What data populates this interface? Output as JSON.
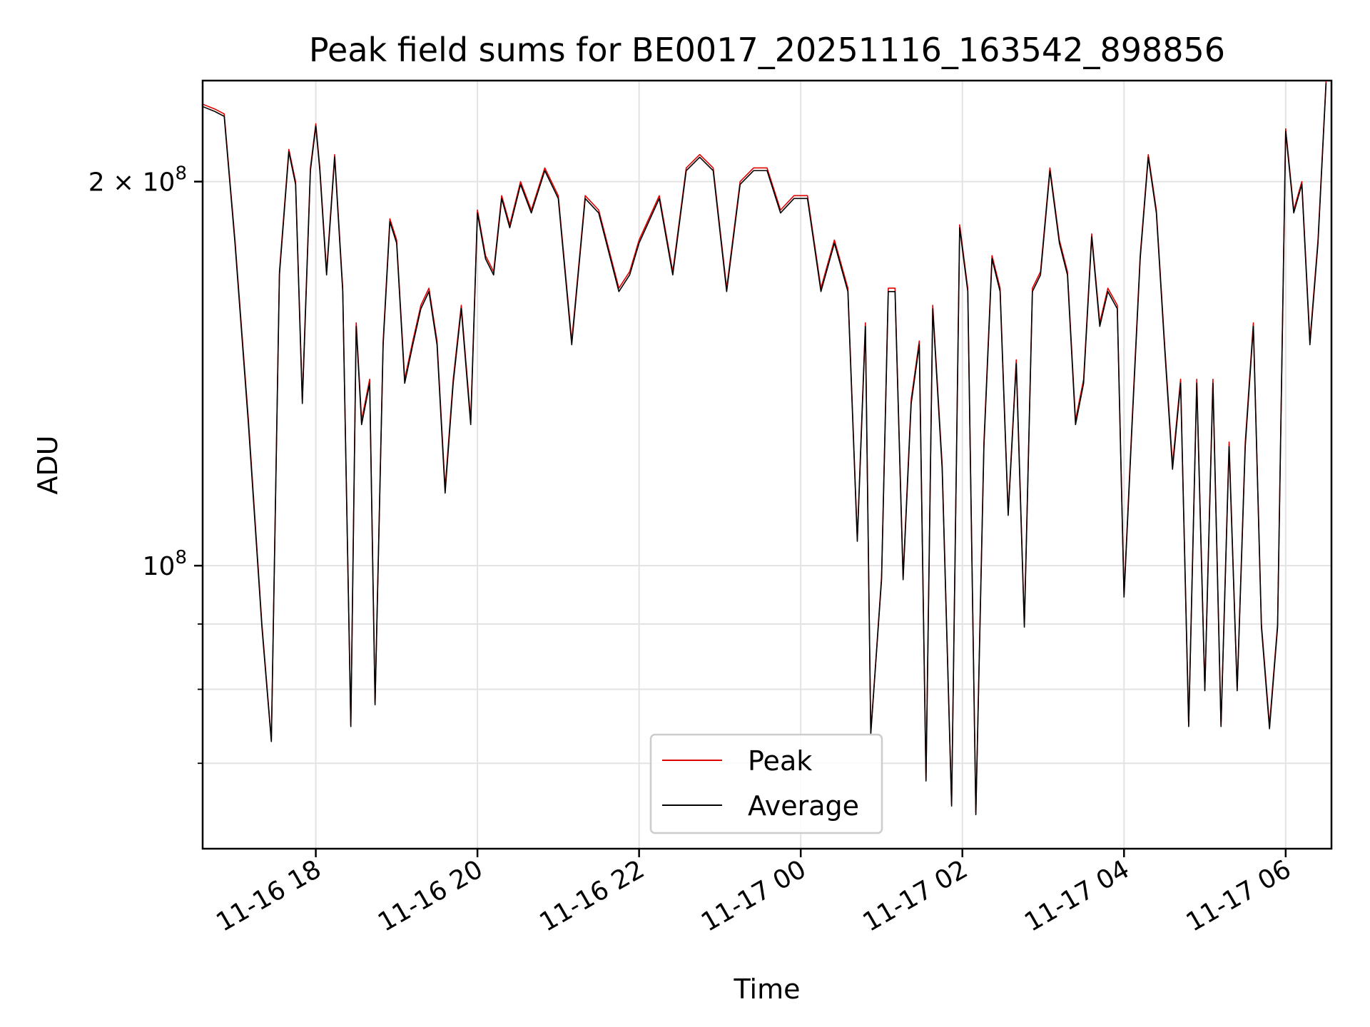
{
  "chart_data": {
    "type": "line",
    "title": "Peak field sums for BE0017_20251116_163542_898856",
    "xlabel": "Time",
    "ylabel": "ADU",
    "y_scale": "log",
    "grid": true,
    "legend_placement": "lower-center",
    "xlim": [
      "2025-11-16 16:36",
      "2025-11-17 06:34"
    ],
    "ylim": [
      60000000,
      240000000
    ],
    "x_ticks": [
      {
        "value": "2025-11-16 18:00",
        "label": "11-16 18"
      },
      {
        "value": "2025-11-16 20:00",
        "label": "11-16 20"
      },
      {
        "value": "2025-11-16 22:00",
        "label": "11-16 22"
      },
      {
        "value": "2025-11-17 00:00",
        "label": "11-17 00"
      },
      {
        "value": "2025-11-17 02:00",
        "label": "11-17 02"
      },
      {
        "value": "2025-11-17 04:00",
        "label": "11-17 04"
      },
      {
        "value": "2025-11-17 06:00",
        "label": "11-17 06"
      }
    ],
    "y_major_ticks": [
      {
        "value": 100000000,
        "label_base": "10",
        "label_exp": "8",
        "label_coef": ""
      },
      {
        "value": 200000000,
        "label_base": "10",
        "label_exp": "8",
        "label_coef": "2 × "
      }
    ],
    "y_minor_ticks": [
      70000000,
      80000000,
      90000000
    ],
    "series": [
      {
        "name": "Peak",
        "color": "#e00000",
        "x": [
          "2025-11-16 16:36",
          "2025-11-16 16:45",
          "2025-11-16 16:52",
          "2025-11-16 17:00",
          "2025-11-16 17:10",
          "2025-11-16 17:20",
          "2025-11-16 17:27",
          "2025-11-16 17:33",
          "2025-11-16 17:40",
          "2025-11-16 17:45",
          "2025-11-16 17:50",
          "2025-11-16 17:56",
          "2025-11-16 18:00",
          "2025-11-16 18:03",
          "2025-11-16 18:08",
          "2025-11-16 18:14",
          "2025-11-16 18:20",
          "2025-11-16 18:26",
          "2025-11-16 18:30",
          "2025-11-16 18:34",
          "2025-11-16 18:40",
          "2025-11-16 18:44",
          "2025-11-16 18:50",
          "2025-11-16 18:55",
          "2025-11-16 19:00",
          "2025-11-16 19:06",
          "2025-11-16 19:12",
          "2025-11-16 19:18",
          "2025-11-16 19:24",
          "2025-11-16 19:30",
          "2025-11-16 19:36",
          "2025-11-16 19:42",
          "2025-11-16 19:48",
          "2025-11-16 19:55",
          "2025-11-16 20:00",
          "2025-11-16 20:06",
          "2025-11-16 20:12",
          "2025-11-16 20:18",
          "2025-11-16 20:24",
          "2025-11-16 20:32",
          "2025-11-16 20:40",
          "2025-11-16 20:50",
          "2025-11-16 21:00",
          "2025-11-16 21:10",
          "2025-11-16 21:20",
          "2025-11-16 21:30",
          "2025-11-16 21:45",
          "2025-11-16 21:53",
          "2025-11-16 22:00",
          "2025-11-16 22:15",
          "2025-11-16 22:25",
          "2025-11-16 22:35",
          "2025-11-16 22:45",
          "2025-11-16 22:55",
          "2025-11-16 23:05",
          "2025-11-16 23:15",
          "2025-11-16 23:25",
          "2025-11-16 23:35",
          "2025-11-16 23:45",
          "2025-11-16 23:55",
          "2025-11-17 00:05",
          "2025-11-17 00:15",
          "2025-11-17 00:25",
          "2025-11-17 00:35",
          "2025-11-17 00:42",
          "2025-11-17 00:48",
          "2025-11-17 00:52",
          "2025-11-17 00:56",
          "2025-11-17 01:00",
          "2025-11-17 01:05",
          "2025-11-17 01:10",
          "2025-11-17 01:16",
          "2025-11-17 01:22",
          "2025-11-17 01:28",
          "2025-11-17 01:33",
          "2025-11-17 01:38",
          "2025-11-17 01:45",
          "2025-11-17 01:52",
          "2025-11-17 01:58",
          "2025-11-17 02:04",
          "2025-11-17 02:10",
          "2025-11-17 02:16",
          "2025-11-17 02:22",
          "2025-11-17 02:28",
          "2025-11-17 02:34",
          "2025-11-17 02:40",
          "2025-11-17 02:46",
          "2025-11-17 02:52",
          "2025-11-17 02:58",
          "2025-11-17 03:05",
          "2025-11-17 03:12",
          "2025-11-17 03:18",
          "2025-11-17 03:24",
          "2025-11-17 03:30",
          "2025-11-17 03:36",
          "2025-11-17 03:42",
          "2025-11-17 03:48",
          "2025-11-17 03:55",
          "2025-11-17 04:00",
          "2025-11-17 04:06",
          "2025-11-17 04:12",
          "2025-11-17 04:18",
          "2025-11-17 04:24",
          "2025-11-17 04:30",
          "2025-11-17 04:36",
          "2025-11-17 04:42",
          "2025-11-17 04:48",
          "2025-11-17 04:54",
          "2025-11-17 05:00",
          "2025-11-17 05:06",
          "2025-11-17 05:12",
          "2025-11-17 05:18",
          "2025-11-17 05:24",
          "2025-11-17 05:30",
          "2025-11-17 05:36",
          "2025-11-17 05:42",
          "2025-11-17 05:48",
          "2025-11-17 05:54",
          "2025-11-17 06:00",
          "2025-11-17 06:06",
          "2025-11-17 06:12",
          "2025-11-17 06:18",
          "2025-11-17 06:24",
          "2025-11-17 06:30"
        ],
        "values": [
          230000000,
          228000000,
          226000000,
          180000000,
          130000000,
          90000000,
          73000000,
          170000000,
          212000000,
          200000000,
          135000000,
          205000000,
          222000000,
          205000000,
          170000000,
          210000000,
          165000000,
          75000000,
          155000000,
          130000000,
          140000000,
          78000000,
          150000000,
          187000000,
          180000000,
          140000000,
          150000000,
          160000000,
          165000000,
          150000000,
          115000000,
          140000000,
          160000000,
          130000000,
          190000000,
          175000000,
          170000000,
          195000000,
          185000000,
          200000000,
          190000000,
          205000000,
          195000000,
          150000000,
          195000000,
          190000000,
          165000000,
          170000000,
          180000000,
          195000000,
          170000000,
          205000000,
          210000000,
          205000000,
          165000000,
          200000000,
          205000000,
          205000000,
          190000000,
          195000000,
          195000000,
          165000000,
          180000000,
          165000000,
          105000000,
          155000000,
          74000000,
          85000000,
          98000000,
          165000000,
          165000000,
          98000000,
          135000000,
          150000000,
          68000000,
          160000000,
          120000000,
          65000000,
          185000000,
          165000000,
          64000000,
          125000000,
          175000000,
          165000000,
          110000000,
          145000000,
          90000000,
          165000000,
          170000000,
          205000000,
          180000000,
          170000000,
          130000000,
          140000000,
          182000000,
          155000000,
          165000000,
          160000000,
          95000000,
          130000000,
          175000000,
          210000000,
          190000000,
          150000000,
          120000000,
          140000000,
          75000000,
          140000000,
          80000000,
          140000000,
          75000000,
          125000000,
          80000000,
          125000000,
          155000000,
          90000000,
          75000000,
          90000000,
          220000000,
          190000000,
          200000000,
          150000000,
          180000000,
          240000000
        ]
      },
      {
        "name": "Average",
        "color": "#000000",
        "x": [
          "2025-11-16 16:36",
          "2025-11-16 16:45",
          "2025-11-16 16:52",
          "2025-11-16 17:00",
          "2025-11-16 17:10",
          "2025-11-16 17:20",
          "2025-11-16 17:27",
          "2025-11-16 17:33",
          "2025-11-16 17:40",
          "2025-11-16 17:45",
          "2025-11-16 17:50",
          "2025-11-16 17:56",
          "2025-11-16 18:00",
          "2025-11-16 18:03",
          "2025-11-16 18:08",
          "2025-11-16 18:14",
          "2025-11-16 18:20",
          "2025-11-16 18:26",
          "2025-11-16 18:30",
          "2025-11-16 18:34",
          "2025-11-16 18:40",
          "2025-11-16 18:44",
          "2025-11-16 18:50",
          "2025-11-16 18:55",
          "2025-11-16 19:00",
          "2025-11-16 19:06",
          "2025-11-16 19:12",
          "2025-11-16 19:18",
          "2025-11-16 19:24",
          "2025-11-16 19:30",
          "2025-11-16 19:36",
          "2025-11-16 19:42",
          "2025-11-16 19:48",
          "2025-11-16 19:55",
          "2025-11-16 20:00",
          "2025-11-16 20:06",
          "2025-11-16 20:12",
          "2025-11-16 20:18",
          "2025-11-16 20:24",
          "2025-11-16 20:32",
          "2025-11-16 20:40",
          "2025-11-16 20:50",
          "2025-11-16 21:00",
          "2025-11-16 21:10",
          "2025-11-16 21:20",
          "2025-11-16 21:30",
          "2025-11-16 21:45",
          "2025-11-16 21:53",
          "2025-11-16 22:00",
          "2025-11-16 22:15",
          "2025-11-16 22:25",
          "2025-11-16 22:35",
          "2025-11-16 22:45",
          "2025-11-16 22:55",
          "2025-11-16 23:05",
          "2025-11-16 23:15",
          "2025-11-16 23:25",
          "2025-11-16 23:35",
          "2025-11-16 23:45",
          "2025-11-16 23:55",
          "2025-11-17 00:05",
          "2025-11-17 00:15",
          "2025-11-17 00:25",
          "2025-11-17 00:35",
          "2025-11-17 00:42",
          "2025-11-17 00:48",
          "2025-11-17 00:52",
          "2025-11-17 00:56",
          "2025-11-17 01:00",
          "2025-11-17 01:05",
          "2025-11-17 01:10",
          "2025-11-17 01:16",
          "2025-11-17 01:22",
          "2025-11-17 01:28",
          "2025-11-17 01:33",
          "2025-11-17 01:38",
          "2025-11-17 01:45",
          "2025-11-17 01:52",
          "2025-11-17 01:58",
          "2025-11-17 02:04",
          "2025-11-17 02:10",
          "2025-11-17 02:16",
          "2025-11-17 02:22",
          "2025-11-17 02:28",
          "2025-11-17 02:34",
          "2025-11-17 02:40",
          "2025-11-17 02:46",
          "2025-11-17 02:52",
          "2025-11-17 02:58",
          "2025-11-17 03:05",
          "2025-11-17 03:12",
          "2025-11-17 03:18",
          "2025-11-17 03:24",
          "2025-11-17 03:30",
          "2025-11-17 03:36",
          "2025-11-17 03:42",
          "2025-11-17 03:48",
          "2025-11-17 03:55",
          "2025-11-17 04:00",
          "2025-11-17 04:06",
          "2025-11-17 04:12",
          "2025-11-17 04:18",
          "2025-11-17 04:24",
          "2025-11-17 04:30",
          "2025-11-17 04:36",
          "2025-11-17 04:42",
          "2025-11-17 04:48",
          "2025-11-17 04:54",
          "2025-11-17 05:00",
          "2025-11-17 05:06",
          "2025-11-17 05:12",
          "2025-11-17 05:18",
          "2025-11-17 05:24",
          "2025-11-17 05:30",
          "2025-11-17 05:36",
          "2025-11-17 05:42",
          "2025-11-17 05:48",
          "2025-11-17 05:54",
          "2025-11-17 06:00",
          "2025-11-17 06:06",
          "2025-11-17 06:12",
          "2025-11-17 06:18",
          "2025-11-17 06:24",
          "2025-11-17 06:30"
        ],
        "values": [
          229000000,
          227000000,
          225000000,
          179000000,
          129000000,
          89500000,
          72800000,
          169000000,
          211000000,
          199000000,
          134000000,
          204000000,
          221000000,
          204000000,
          169000000,
          209000000,
          164000000,
          74800000,
          154000000,
          129000000,
          139000000,
          77800000,
          149000000,
          186000000,
          179000000,
          139000000,
          149000000,
          159000000,
          164000000,
          149000000,
          114000000,
          139000000,
          159000000,
          129000000,
          189000000,
          174000000,
          169000000,
          194000000,
          184000000,
          199000000,
          189000000,
          204000000,
          194000000,
          149000000,
          194000000,
          189000000,
          164000000,
          169000000,
          179000000,
          194000000,
          169000000,
          204000000,
          209000000,
          204000000,
          164000000,
          199000000,
          204000000,
          204000000,
          189000000,
          194000000,
          194000000,
          164000000,
          179000000,
          164000000,
          104500000,
          154000000,
          73800000,
          84800000,
          97500000,
          164000000,
          164000000,
          97500000,
          134000000,
          149000000,
          67800000,
          159000000,
          119000000,
          64800000,
          184000000,
          164000000,
          63800000,
          124000000,
          174000000,
          164000000,
          109500000,
          144000000,
          89500000,
          164000000,
          169000000,
          204000000,
          179000000,
          169000000,
          129000000,
          139000000,
          181000000,
          154000000,
          164000000,
          159000000,
          94500000,
          129000000,
          174000000,
          209000000,
          189000000,
          149000000,
          119000000,
          139000000,
          74800000,
          139000000,
          79800000,
          139000000,
          74800000,
          124000000,
          79800000,
          124000000,
          154000000,
          89500000,
          74500000,
          89500000,
          219000000,
          189000000,
          199000000,
          149000000,
          179000000,
          239000000
        ]
      }
    ]
  }
}
